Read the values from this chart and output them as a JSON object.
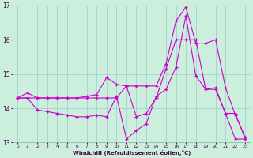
{
  "background_color": "#cceedd",
  "grid_color": "#99cccc",
  "line_color": "#cc00cc",
  "xlim": [
    -0.5,
    23.5
  ],
  "ylim": [
    13,
    17
  ],
  "yticks": [
    13,
    14,
    15,
    16,
    17
  ],
  "xticks": [
    0,
    1,
    2,
    3,
    4,
    5,
    6,
    7,
    8,
    9,
    10,
    11,
    12,
    13,
    14,
    15,
    16,
    17,
    18,
    19,
    20,
    21,
    22,
    23
  ],
  "xlabel": "Windchill (Refroidissement éolien,°C)",
  "series1_x": [
    0,
    1,
    2,
    3,
    4,
    5,
    6,
    7,
    8,
    9,
    10,
    11,
    12,
    13,
    14,
    15,
    16,
    17,
    18,
    19,
    20,
    21,
    22,
    23
  ],
  "series1_y": [
    14.3,
    14.45,
    14.3,
    14.3,
    14.3,
    14.3,
    14.3,
    14.35,
    14.4,
    14.9,
    14.7,
    14.65,
    14.65,
    14.65,
    14.65,
    15.3,
    16.55,
    16.95,
    15.9,
    15.9,
    16.0,
    14.6,
    13.8,
    13.15
  ],
  "series2_x": [
    0,
    1,
    2,
    3,
    4,
    5,
    6,
    7,
    8,
    9,
    10,
    11,
    12,
    13,
    14,
    15,
    16,
    17,
    18,
    19,
    20,
    21,
    22,
    23
  ],
  "series2_y": [
    14.3,
    14.3,
    13.95,
    13.9,
    13.85,
    13.8,
    13.75,
    13.75,
    13.8,
    13.75,
    14.35,
    13.1,
    13.35,
    13.55,
    14.35,
    14.55,
    15.2,
    16.7,
    14.95,
    14.55,
    14.6,
    13.85,
    13.1,
    13.1
  ],
  "series3_x": [
    0,
    1,
    2,
    3,
    4,
    5,
    6,
    7,
    8,
    9,
    10,
    11,
    12,
    13,
    14,
    15,
    16,
    17,
    18,
    19,
    20,
    21,
    22,
    23
  ],
  "series3_y": [
    14.3,
    14.3,
    14.3,
    14.3,
    14.3,
    14.3,
    14.3,
    14.3,
    14.3,
    14.3,
    14.3,
    14.65,
    13.75,
    13.85,
    14.3,
    15.15,
    16.0,
    16.0,
    16.0,
    14.55,
    14.55,
    13.85,
    13.85,
    13.1
  ]
}
